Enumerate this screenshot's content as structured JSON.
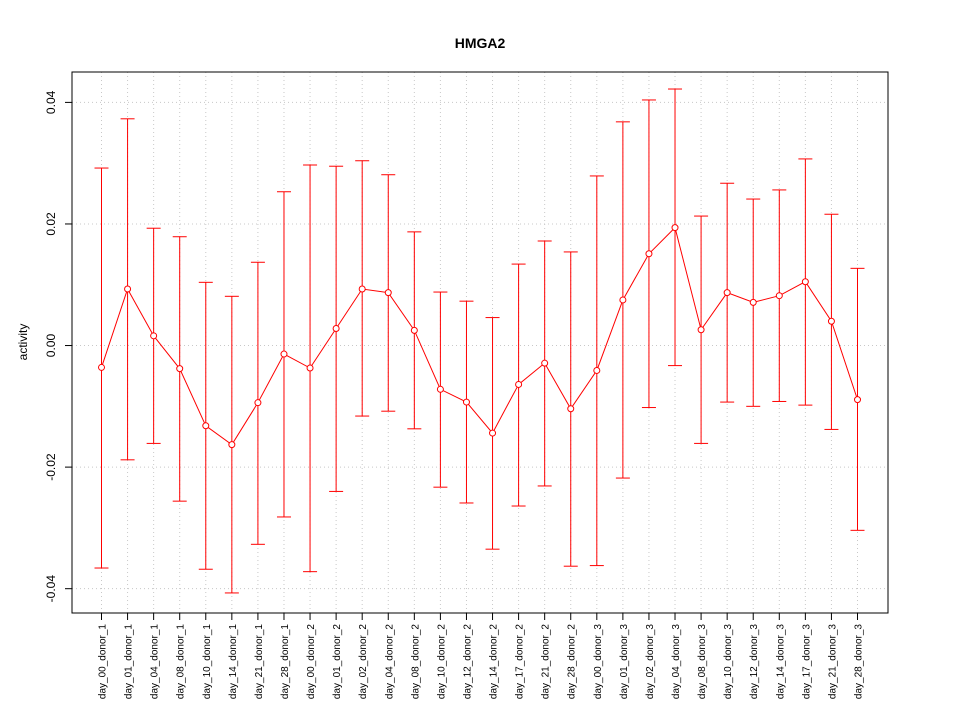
{
  "chart_data": {
    "type": "line",
    "title": "HMGA2",
    "xlabel": "",
    "ylabel": "activity",
    "ylim": [
      -0.044,
      0.045
    ],
    "yticks": [
      -0.04,
      -0.02,
      0.0,
      0.02,
      0.04
    ],
    "ytick_labels": [
      "-0.04",
      "-0.02",
      "0.00",
      "0.02",
      "0.04"
    ],
    "grid": true,
    "error_bars": true,
    "series_color": "#ff0000",
    "categories": [
      "day_00_donor_1",
      "day_01_donor_1",
      "day_04_donor_1",
      "day_08_donor_1",
      "day_10_donor_1",
      "day_14_donor_1",
      "day_21_donor_1",
      "day_28_donor_1",
      "day_00_donor_2",
      "day_01_donor_2",
      "day_02_donor_2",
      "day_04_donor_2",
      "day_08_donor_2",
      "day_10_donor_2",
      "day_12_donor_2",
      "day_14_donor_2",
      "day_17_donor_2",
      "day_21_donor_2",
      "day_28_donor_2",
      "day_00_donor_3",
      "day_01_donor_3",
      "day_02_donor_3",
      "day_04_donor_3",
      "day_08_donor_3",
      "day_10_donor_3",
      "day_12_donor_3",
      "day_14_donor_3",
      "day_17_donor_3",
      "day_21_donor_3",
      "day_28_donor_3"
    ],
    "values": [
      -0.0036,
      0.0093,
      0.0016,
      -0.0038,
      -0.0132,
      -0.0163,
      -0.0094,
      -0.0014,
      -0.0037,
      0.0028,
      0.0093,
      0.0087,
      0.0025,
      -0.0072,
      -0.0093,
      -0.0144,
      -0.0064,
      -0.0029,
      -0.0104,
      -0.0041,
      0.0075,
      0.0151,
      0.0194,
      0.0026,
      0.0087,
      0.0071,
      0.0082,
      0.0105,
      0.004,
      -0.0089
    ],
    "upper": [
      0.0292,
      0.0373,
      0.0193,
      0.0179,
      0.0104,
      0.0081,
      0.0137,
      0.0253,
      0.0297,
      0.0295,
      0.0304,
      0.0281,
      0.0187,
      0.0088,
      0.0073,
      0.0046,
      0.0134,
      0.0172,
      0.0154,
      0.0279,
      0.0368,
      0.0404,
      0.0422,
      0.0213,
      0.0267,
      0.0241,
      0.0256,
      0.0307,
      0.0216,
      0.0127
    ],
    "lower": [
      -0.0366,
      -0.0188,
      -0.0161,
      -0.0256,
      -0.0368,
      -0.0407,
      -0.0327,
      -0.0282,
      -0.0372,
      -0.024,
      -0.0116,
      -0.0108,
      -0.0137,
      -0.0233,
      -0.0259,
      -0.0335,
      -0.0264,
      -0.0231,
      -0.0363,
      -0.0362,
      -0.0218,
      -0.0102,
      -0.0033,
      -0.0161,
      -0.0093,
      -0.01,
      -0.0092,
      -0.0098,
      -0.0138,
      -0.0304
    ]
  }
}
